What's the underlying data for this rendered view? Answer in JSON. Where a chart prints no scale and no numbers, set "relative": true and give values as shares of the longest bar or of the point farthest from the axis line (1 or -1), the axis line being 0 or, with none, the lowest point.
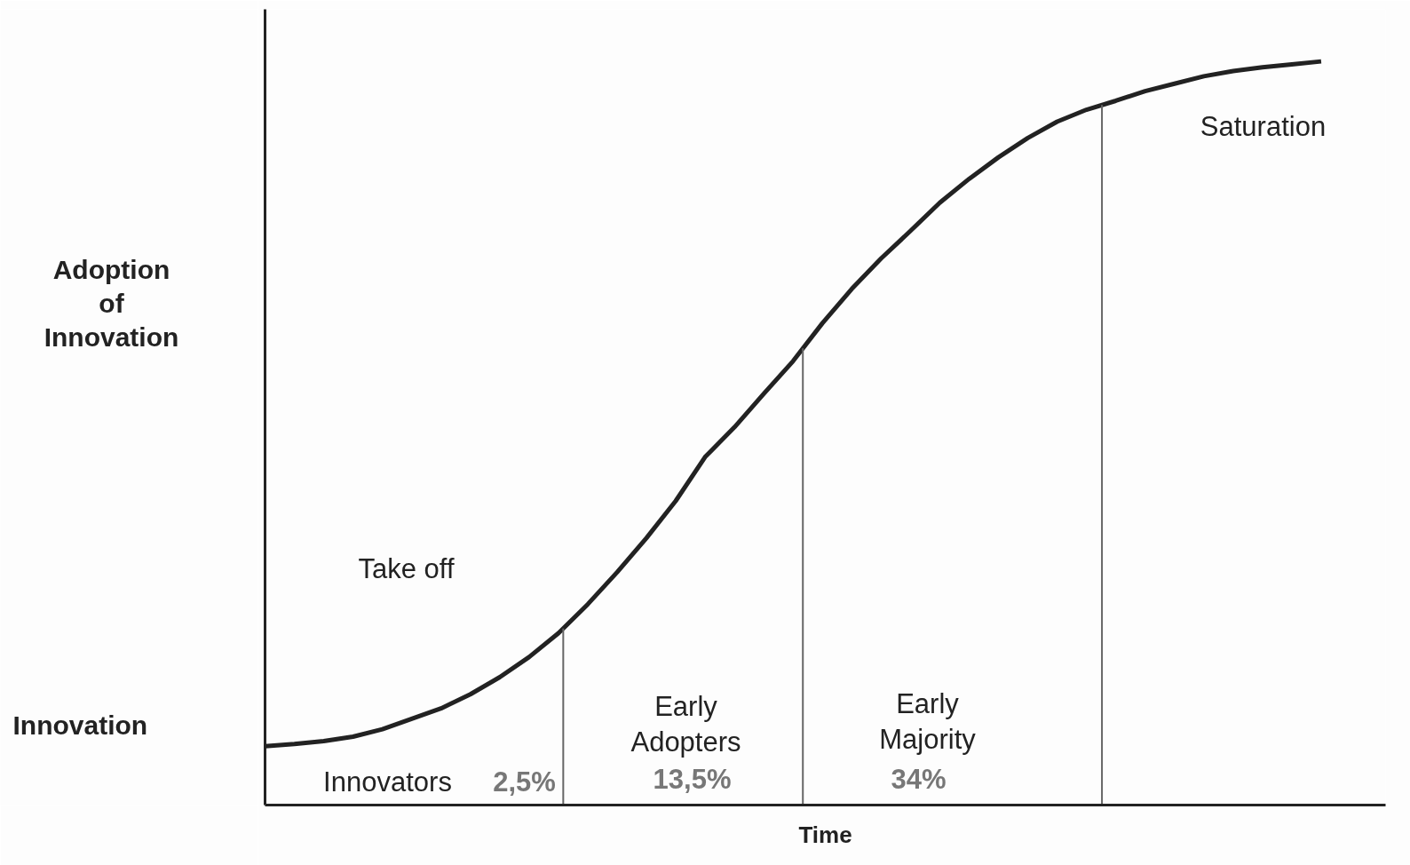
{
  "chart_data": {
    "type": "line",
    "relative": true,
    "xlabel": "Time",
    "ylabel": "Adoption of Innovation",
    "line_style": "solid",
    "categories": [
      null,
      null,
      null,
      null,
      null,
      null,
      null,
      null,
      null,
      null,
      null,
      null,
      null,
      null,
      null,
      null,
      null,
      null,
      null,
      null,
      null,
      null,
      null,
      null,
      null,
      null,
      null,
      null,
      null,
      null,
      null,
      null,
      null,
      null,
      null,
      null,
      null
    ],
    "series": [
      {
        "color": "#222222",
        "values": [
          0.079,
          0.082,
          0.086,
          0.092,
          0.102,
          0.116,
          0.13,
          0.149,
          0.172,
          0.199,
          0.231,
          0.27,
          0.313,
          0.359,
          0.409,
          0.468,
          0.508,
          0.553,
          0.597,
          0.648,
          0.694,
          0.735,
          0.772,
          0.81,
          0.842,
          0.871,
          0.897,
          0.919,
          0.935,
          0.947,
          0.96,
          0.97,
          0.98,
          0.987,
          0.992,
          0.996,
          1.0
        ]
      }
    ],
    "annotations": [
      "Innovation",
      "Take off",
      "Saturation",
      "Innovators",
      "2,5%",
      "Early\nAdopters",
      "13,5%",
      "Early\nMajority",
      "34%"
    ]
  }
}
